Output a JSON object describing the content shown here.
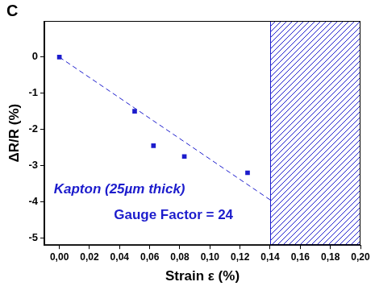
{
  "chart_data": {
    "type": "scatter",
    "panel": "C",
    "x_label": "Strain ε (%)",
    "y_label": "ΔR/R (%)",
    "annotations": [
      "Kapton (25µm thick)",
      "Gauge Factor = 24"
    ],
    "color": "#1c1ccc",
    "grid": false,
    "xlim": [
      -0.01,
      0.2
    ],
    "xticks": [
      {
        "value": 0,
        "label": "0,00"
      },
      {
        "value": 0.02,
        "label": "0,02"
      },
      {
        "value": 0.04,
        "label": "0,04"
      },
      {
        "value": 0.06,
        "label": "0,06"
      },
      {
        "value": 0.08,
        "label": "0,08"
      },
      {
        "value": 0.1,
        "label": "0,10"
      },
      {
        "value": 0.12,
        "label": "0,12"
      },
      {
        "value": 0.14,
        "label": "0,14"
      },
      {
        "value": 0.16,
        "label": "0,16"
      },
      {
        "value": 0.18,
        "label": "0,18"
      },
      {
        "value": 0.2,
        "label": "0,20"
      }
    ],
    "ylim": [
      -5.2,
      1
    ],
    "yticks": [
      0,
      -1,
      -2,
      -3,
      -4,
      -5
    ],
    "shaded_xrange": [
      0.14,
      0.2
    ],
    "series": [
      {
        "type": "scatter",
        "marker": "square",
        "color": "#1c1ccc",
        "x": [
          0,
          0.05,
          0.0625,
          0.083,
          0.125
        ],
        "values": [
          0,
          -1.5,
          -2.45,
          -2.75,
          -3.2
        ]
      },
      {
        "type": "line",
        "line_style": "dashed",
        "color": "#1c1ccc",
        "x": [
          0,
          0.14
        ],
        "values": [
          0,
          -3.95
        ]
      }
    ]
  }
}
